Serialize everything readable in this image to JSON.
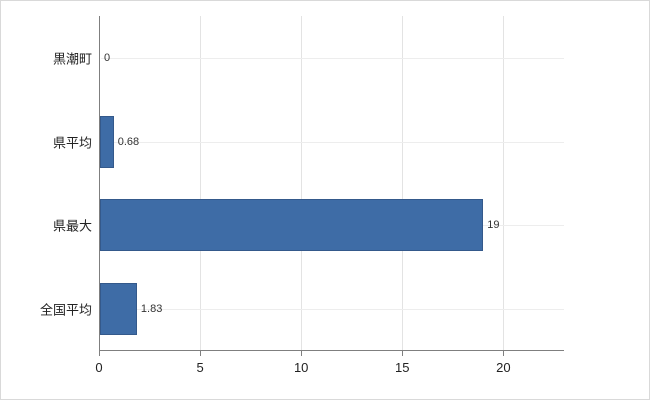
{
  "chart_data": {
    "type": "bar",
    "orientation": "horizontal",
    "title": "",
    "xlabel": "",
    "ylabel": "",
    "categories": [
      "黒潮町",
      "県平均",
      "県最大",
      "全国平均"
    ],
    "values": [
      0,
      0.68,
      19,
      1.83
    ],
    "value_labels": [
      "0",
      "0.68",
      "19",
      "1.83"
    ],
    "xlim": [
      0,
      23
    ],
    "x_ticks": [
      0,
      5,
      10,
      15,
      20
    ],
    "x_tick_labels": [
      "0",
      "5",
      "10",
      "15",
      "20"
    ],
    "grid": true,
    "legend": "none",
    "bar_color": "#3e6ca6",
    "bar_border_color": "#34598b",
    "gridline_color": "#e3e3e3",
    "axis_color": "#7f7f7f"
  }
}
